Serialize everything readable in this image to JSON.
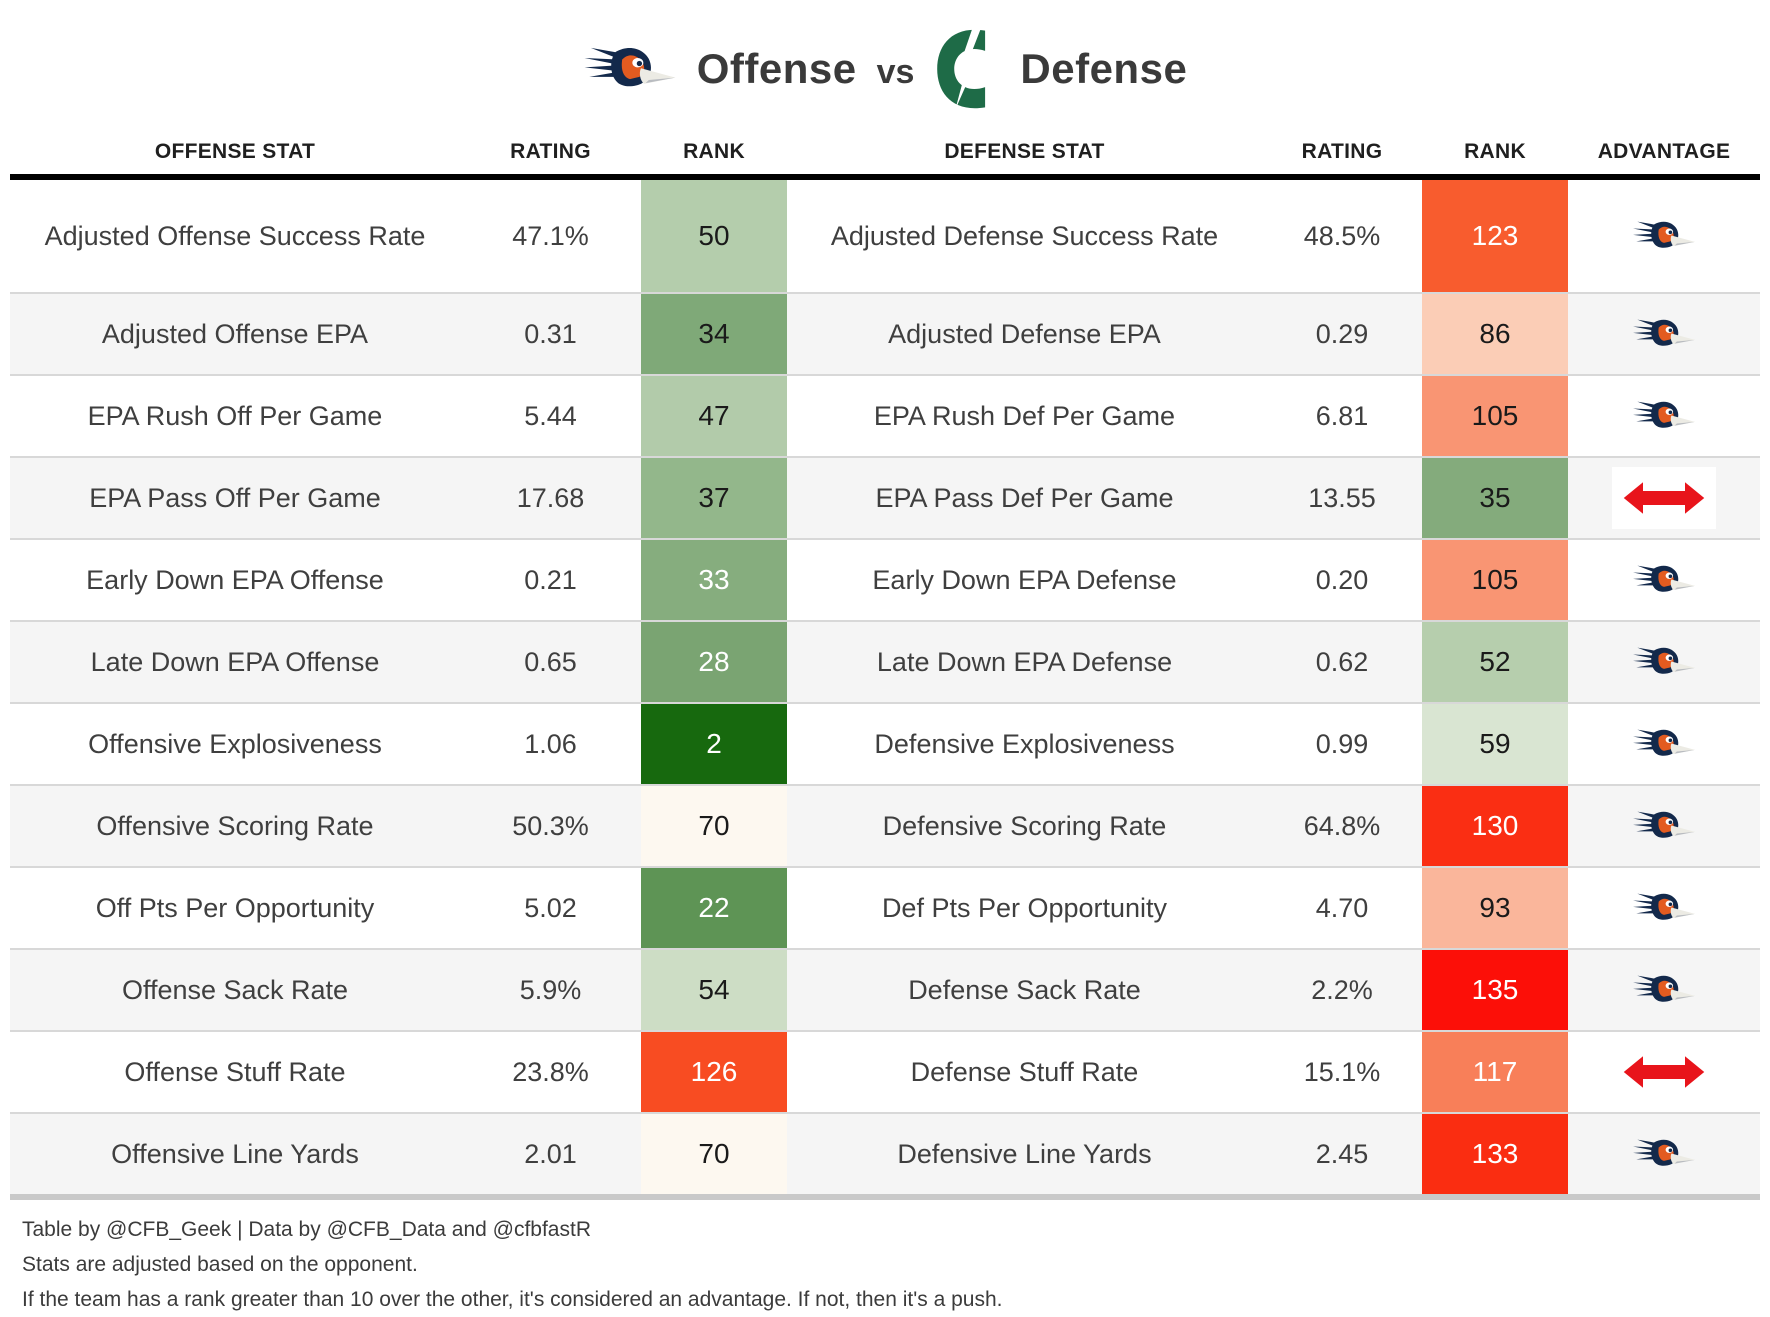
{
  "title": {
    "left_team_icon": "utsa-roadrunner-logo",
    "left_label": "Offense",
    "vs": "vs",
    "right_team_icon": "charlotte-49ers-logo",
    "right_label": "Defense"
  },
  "chart_data": {
    "type": "table",
    "title": "Offense vs Defense",
    "columns": [
      "OFFENSE STAT",
      "RATING",
      "RANK",
      "DEFENSE STAT",
      "RATING",
      "RANK",
      "ADVANTAGE"
    ],
    "rows": [
      {
        "offense_stat": "Adjusted Offense Success Rate",
        "offense_rating": "47.1%",
        "offense_rank": 50,
        "offense_rank_bg": "#b4cdac",
        "offense_rank_text": "#1a1a1a",
        "defense_stat": "Adjusted Defense Success Rate",
        "defense_rating": "48.5%",
        "defense_rank": 123,
        "defense_rank_bg": "#f85c2e",
        "defense_rank_text": "#ffffff",
        "advantage": "utsa"
      },
      {
        "offense_stat": "Adjusted Offense EPA",
        "offense_rating": "0.31",
        "offense_rank": 34,
        "offense_rank_bg": "#7fa978",
        "offense_rank_text": "#1a1a1a",
        "defense_stat": "Adjusted Defense EPA",
        "defense_rating": "0.29",
        "defense_rank": 86,
        "defense_rank_bg": "#fbcdb6",
        "defense_rank_text": "#1a1a1a",
        "advantage": "utsa"
      },
      {
        "offense_stat": "EPA Rush Off Per Game",
        "offense_rating": "5.44",
        "offense_rank": 47,
        "offense_rank_bg": "#b2cbaa",
        "offense_rank_text": "#1a1a1a",
        "defense_stat": "EPA Rush Def Per Game",
        "defense_rating": "6.81",
        "defense_rank": 105,
        "defense_rank_bg": "#f99573",
        "defense_rank_text": "#1a1a1a",
        "advantage": "utsa"
      },
      {
        "offense_stat": "EPA Pass Off Per Game",
        "offense_rating": "17.68",
        "offense_rank": 37,
        "offense_rank_bg": "#93b78b",
        "offense_rank_text": "#1a1a1a",
        "defense_stat": "EPA Pass Def Per Game",
        "defense_rating": "13.55",
        "defense_rank": 35,
        "defense_rank_bg": "#84ab7c",
        "defense_rank_text": "#1a1a1a",
        "advantage": "push"
      },
      {
        "offense_stat": "Early Down EPA Offense",
        "offense_rating": "0.21",
        "offense_rank": 33,
        "offense_rank_bg": "#86ad7e",
        "offense_rank_text": "#ffffff",
        "defense_stat": "Early Down EPA Defense",
        "defense_rating": "0.20",
        "defense_rank": 105,
        "defense_rank_bg": "#f99573",
        "defense_rank_text": "#1a1a1a",
        "advantage": "utsa"
      },
      {
        "offense_stat": "Late Down EPA Offense",
        "offense_rating": "0.65",
        "offense_rank": 28,
        "offense_rank_bg": "#7aa472",
        "offense_rank_text": "#ffffff",
        "defense_stat": "Late Down EPA Defense",
        "defense_rating": "0.62",
        "defense_rank": 52,
        "defense_rank_bg": "#b6cead",
        "defense_rank_text": "#1a1a1a",
        "advantage": "utsa"
      },
      {
        "offense_stat": "Offensive Explosiveness",
        "offense_rating": "1.06",
        "offense_rank": 2,
        "offense_rank_bg": "#17690e",
        "offense_rank_text": "#ffffff",
        "defense_stat": "Defensive Explosiveness",
        "defense_rating": "0.99",
        "defense_rank": 59,
        "defense_rank_bg": "#d9e5d2",
        "defense_rank_text": "#1a1a1a",
        "advantage": "utsa"
      },
      {
        "offense_stat": "Offensive Scoring Rate",
        "offense_rating": "50.3%",
        "offense_rank": 70,
        "offense_rank_bg": "#fdf8f0",
        "offense_rank_text": "#1a1a1a",
        "defense_stat": "Defensive Scoring Rate",
        "defense_rating": "64.8%",
        "defense_rank": 130,
        "defense_rank_bg": "#fa2e13",
        "defense_rank_text": "#ffffff",
        "advantage": "utsa"
      },
      {
        "offense_stat": "Off Pts Per Opportunity",
        "offense_rating": "5.02",
        "offense_rank": 22,
        "offense_rank_bg": "#5e9455",
        "offense_rank_text": "#ffffff",
        "defense_stat": "Def Pts Per Opportunity",
        "defense_rating": "4.70",
        "defense_rank": 93,
        "defense_rank_bg": "#fab69b",
        "defense_rank_text": "#1a1a1a",
        "advantage": "utsa"
      },
      {
        "offense_stat": "Offense Sack Rate",
        "offense_rating": "5.9%",
        "offense_rank": 54,
        "offense_rank_bg": "#cdddc5",
        "offense_rank_text": "#1a1a1a",
        "defense_stat": "Defense Sack Rate",
        "defense_rating": "2.2%",
        "defense_rank": 135,
        "defense_rank_bg": "#fc0f08",
        "defense_rank_text": "#ffffff",
        "advantage": "utsa"
      },
      {
        "offense_stat": "Offense Stuff Rate",
        "offense_rating": "23.8%",
        "offense_rank": 126,
        "offense_rank_bg": "#f84c22",
        "offense_rank_text": "#ffffff",
        "defense_stat": "Defense Stuff Rate",
        "defense_rating": "15.1%",
        "defense_rank": 117,
        "defense_rank_bg": "#f87f59",
        "defense_rank_text": "#ffffff",
        "advantage": "push"
      },
      {
        "offense_stat": "Offensive Line Yards",
        "offense_rating": "2.01",
        "offense_rank": 70,
        "offense_rank_bg": "#fdf8f0",
        "offense_rank_text": "#1a1a1a",
        "defense_stat": "Defensive Line Yards",
        "defense_rating": "2.45",
        "defense_rank": 133,
        "defense_rank_bg": "#fa2d11",
        "defense_rank_text": "#ffffff",
        "advantage": "utsa"
      }
    ],
    "legend": {
      "advantage_utsa_icon": "utsa-roadrunner-logo",
      "advantage_push_icon": "push-arrow-icon"
    }
  },
  "footer": {
    "line1": "Table by @CFB_Geek | Data by @CFB_Data and @cfbfastR",
    "line2": "Stats are adjusted based on the opponent.",
    "line3": "If the team has a rank greater than 10 over the other, it's considered an advantage. If not, then it's a push."
  },
  "colors": {
    "header_rule": "#000000",
    "row_alt": "#f5f5f5",
    "row_separator": "#d8d8d8",
    "bottom_bar": "#c9c9c9",
    "utsa_navy": "#13294b",
    "utsa_orange": "#e35b20",
    "charlotte_green": "#1e6b47",
    "push_red": "#e8141b"
  }
}
